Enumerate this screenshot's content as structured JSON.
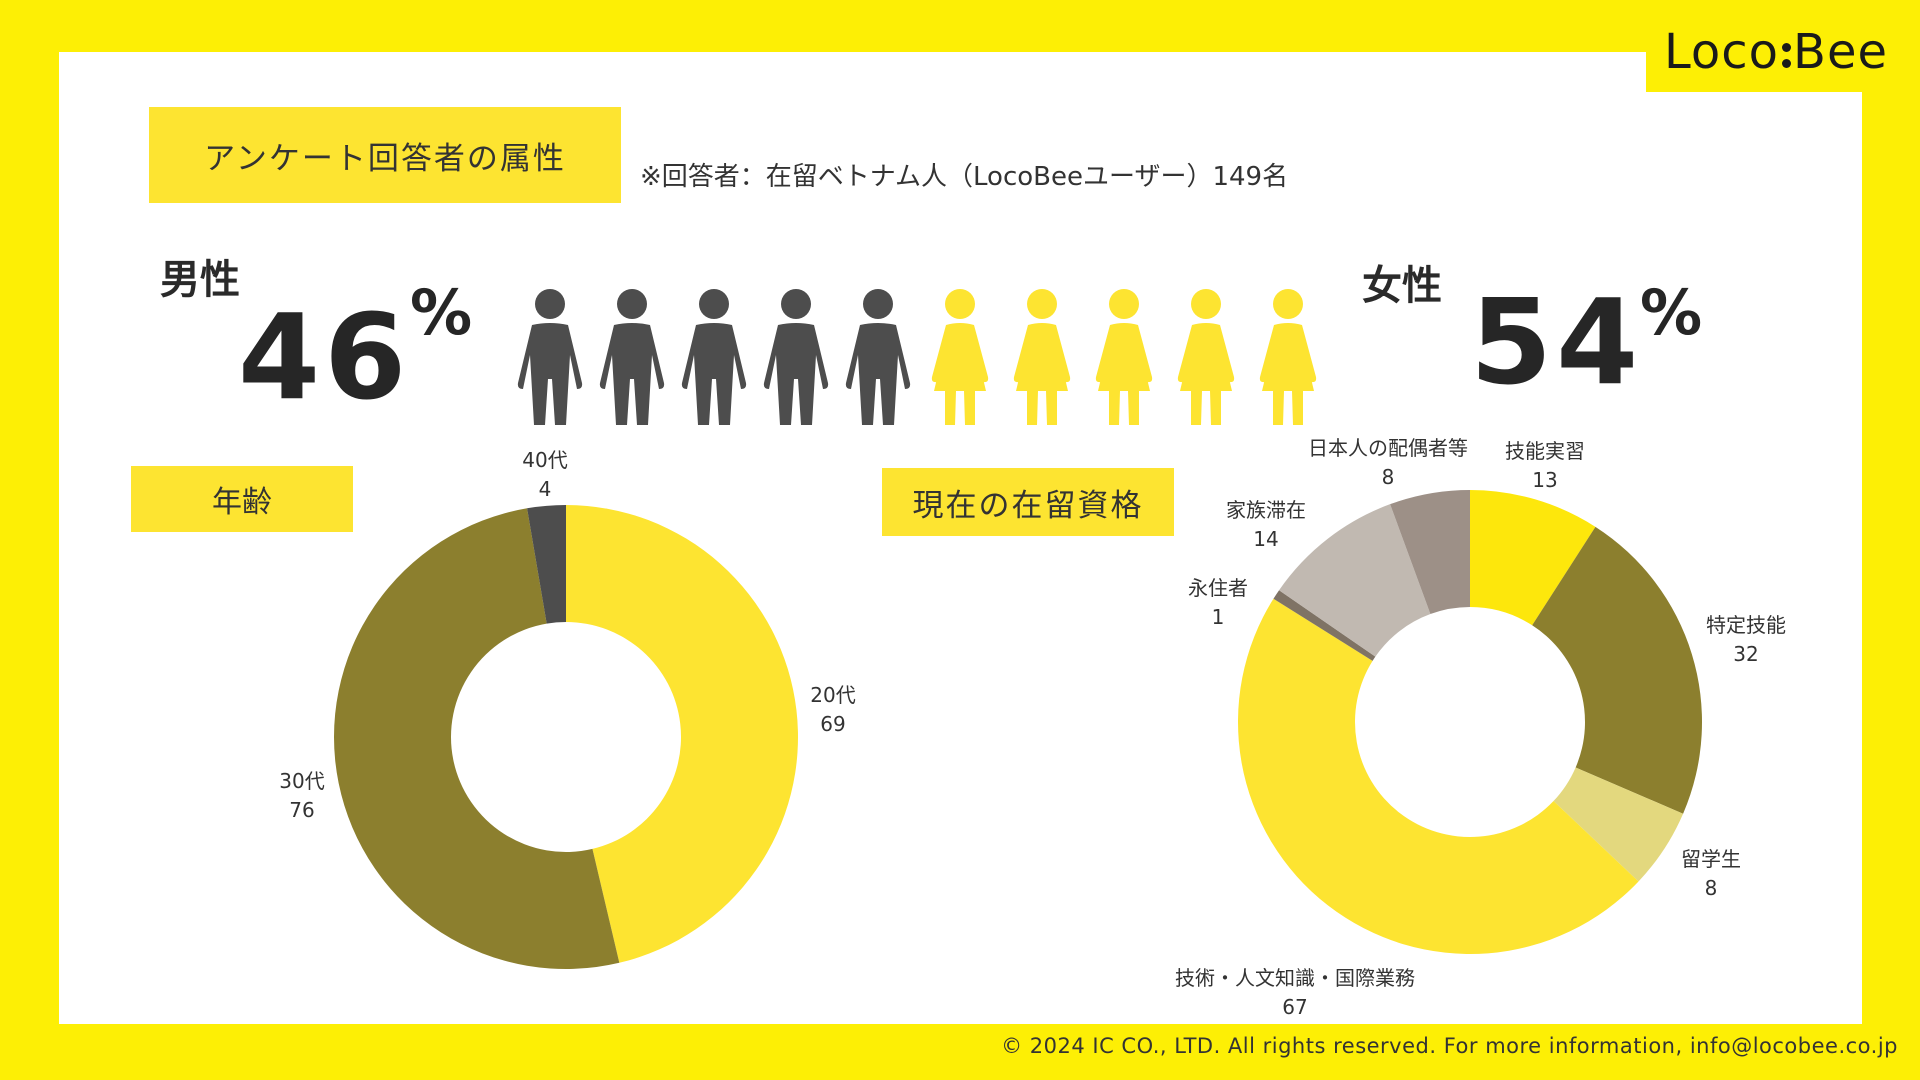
{
  "brand": {
    "logo_left": "Loco",
    "logo_right": "Bee"
  },
  "header": {
    "title": "アンケート回答者の属性",
    "note": "※回答者：在留ベトナム人（LocoBeeユーザー）149名"
  },
  "gender": {
    "male_label": "男性",
    "male_value": "46",
    "female_label": "女性",
    "female_value": "54",
    "percent_sign": "%",
    "male_color": "#4d4d4d",
    "female_color": "#fde431",
    "male_figures": 5,
    "female_figures": 5
  },
  "sections": {
    "age_title": "年齢",
    "status_title": "現在の在留資格"
  },
  "footer": {
    "copyright": "© 2024 IC CO., LTD. All rights reserved. For more information, info@locobee.co.jp"
  },
  "chart_data": [
    {
      "type": "pie",
      "title": "年齢",
      "donut": true,
      "start_angle_deg": 0,
      "categories": [
        "20代",
        "30代",
        "40代"
      ],
      "values": [
        69,
        76,
        4
      ],
      "colors": [
        "#fde431",
        "#8c7f2e",
        "#4d4d4d"
      ]
    },
    {
      "type": "pie",
      "title": "現在の在留資格",
      "donut": true,
      "start_angle_deg": 0,
      "categories": [
        "技能実習",
        "特定技能",
        "留学生",
        "技術・人文知識・国際業務",
        "永住者",
        "家族滞在",
        "日本人の配偶者等"
      ],
      "values": [
        13,
        32,
        8,
        67,
        1,
        14,
        8
      ],
      "colors": [
        "#fde70c",
        "#8c7f2e",
        "#e3d87e",
        "#fde431",
        "#7f7365",
        "#c1b9b1",
        "#9d9087"
      ]
    },
    {
      "type": "bar",
      "title": "男性 / 女性",
      "categories": [
        "男性",
        "女性"
      ],
      "values": [
        46,
        54
      ]
    }
  ]
}
